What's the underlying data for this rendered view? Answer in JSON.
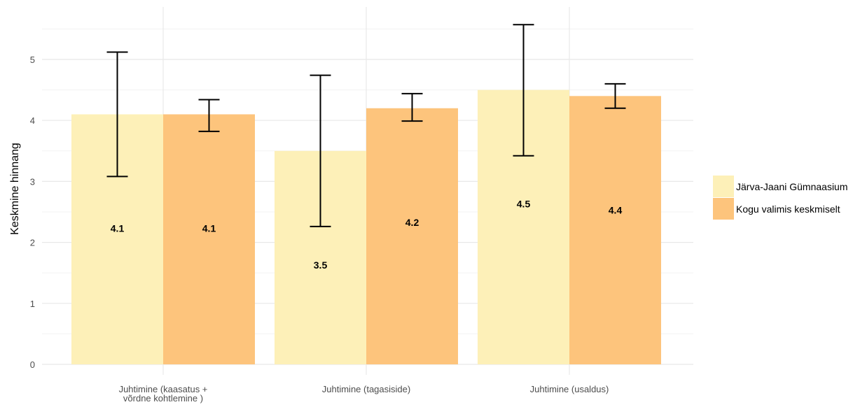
{
  "chart_data": {
    "type": "bar",
    "title": "",
    "xlabel": "",
    "ylabel": "Keskmine hinnang",
    "ylim": [
      0,
      5.8
    ],
    "yticks": [
      0,
      1,
      2,
      3,
      4,
      5
    ],
    "grid": true,
    "legend_position": "right",
    "categories": [
      [
        "Juhtimine (kaasatus +",
        "võrdne kohtlemine )"
      ],
      [
        "Juhtimine (tagasiside)"
      ],
      [
        "Juhtimine (usaldus)"
      ]
    ],
    "series": [
      {
        "name": "Järva-Jaani Gümnaasium",
        "color": "#fdf0b8",
        "values": [
          4.1,
          3.5,
          4.5
        ],
        "labels": [
          "4.1",
          "3.5",
          "4.5"
        ],
        "error_low": [
          3.08,
          2.26,
          3.42
        ],
        "error_high": [
          5.12,
          4.74,
          5.57
        ]
      },
      {
        "name": "Kogu valimis keskmiselt",
        "color": "#fdc47c",
        "values": [
          4.1,
          4.2,
          4.4
        ],
        "labels": [
          "4.1",
          "4.2",
          "4.4"
        ],
        "error_low": [
          3.82,
          3.99,
          4.2
        ],
        "error_high": [
          4.34,
          4.44,
          4.6
        ]
      }
    ]
  }
}
